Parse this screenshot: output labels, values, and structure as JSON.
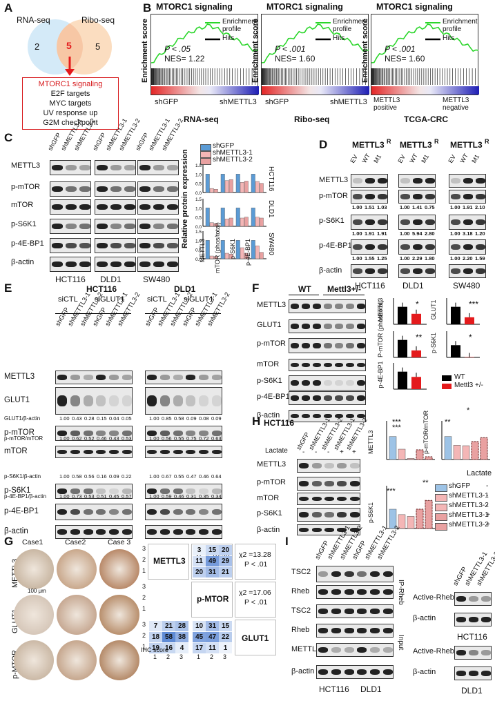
{
  "panels": {
    "A": "A",
    "B": "B",
    "C": "C",
    "D": "D",
    "E": "E",
    "F": "F",
    "G": "G",
    "H": "H",
    "I": "I"
  },
  "venn": {
    "left": "RNA-seq",
    "right": "Ribo-seq",
    "left_only": "2",
    "overlap": "5",
    "right_only": "5",
    "list": [
      "MTORC1 signaling",
      "E2F targets",
      "MYC targets",
      "UV response up",
      "G2M checkpoint"
    ]
  },
  "gsea": [
    {
      "title": "MTORC1 signaling",
      "p": "P < .05",
      "nes": "NES= 1.22",
      "left": "shGFP",
      "right": "shMETTL3",
      "caption": "RNA-seq",
      "legend1": "Enrichment profile",
      "legend2": "Hits"
    },
    {
      "title": "MTORC1 signaling",
      "p": "P < .001",
      "nes": "NES= 1.60",
      "left": "shGFP",
      "right": "shMETTL3",
      "caption": "Ribo-seq",
      "legend1": "Enrichment profile",
      "legend2": "Hits"
    },
    {
      "title": "MTORC1 signaling",
      "p": "P < .001",
      "nes": "NES= 1.60",
      "left": "METTL3 positive",
      "right": "METTL3 negative",
      "caption": "TCGA-CRC",
      "legend1": "Enrichment profile",
      "legend2": "Hits"
    }
  ],
  "gsea_ylabel": "Enrichment score",
  "C": {
    "rows": [
      "METTL3",
      "p-mTOR",
      "mTOR",
      "p-S6K1",
      "p-4E-BP1",
      "β-actin"
    ],
    "lanes": [
      "shGFP",
      "shMETTL3-1",
      "shMETTL3-2"
    ],
    "cells": [
      "HCT116",
      "DLD1",
      "SW480"
    ],
    "legend": [
      "shGFP",
      "shMETTL3-1",
      "shMETTL3-2"
    ],
    "ylabel": "Relative protein expression",
    "xcats": [
      "METTL3",
      "mTOR (phos/total)",
      "p-S6K1",
      "p-4E-BP1"
    ]
  },
  "D": {
    "headers": [
      "METTL3",
      "METTL3",
      "METTL3"
    ],
    "sup": "R",
    "lanes": [
      "EV",
      "WT",
      "M1"
    ],
    "rows": [
      "METTL3",
      "p-mTOR",
      "p-S6K1",
      "p-4E-BP1",
      "β-actin"
    ],
    "cells": [
      "HCT116",
      "DLD1",
      "SW480"
    ],
    "quant": {
      "p-mTOR": [
        [
          "1.00",
          "1.51",
          "1.03"
        ],
        [
          "1.00",
          "1.41",
          "0.75"
        ],
        [
          "1.00",
          "1.91",
          "2.10"
        ]
      ],
      "p-S6K1": [
        [
          "1.00",
          "1.91",
          "1.91"
        ],
        [
          "1.00",
          "5.94",
          "2.80"
        ],
        [
          "1.00",
          "3.18",
          "1.20"
        ]
      ],
      "p-4E-BP1": [
        [
          "1.00",
          "1.55",
          "1.25"
        ],
        [
          "1.00",
          "2.29",
          "1.80"
        ],
        [
          "1.00",
          "2.20",
          "1.59"
        ]
      ]
    }
  },
  "E": {
    "cells": [
      "HCT116",
      "DLD1"
    ],
    "si": [
      "siCTL",
      "siGLUT1"
    ],
    "plus": "+",
    "lanes": [
      "shGFP",
      "shMETTL3-1",
      "shMETTL3-2",
      "shGFP",
      "shMETTL3-1",
      "shMETTL3-2"
    ],
    "rows": [
      "METTL3",
      "GLUT1",
      "p-mTOR",
      "mTOR",
      "p-S6K1",
      "p-4E-BP1",
      "β-actin"
    ],
    "quant": [
      {
        "label": "GLUT1/β-actin",
        "vals": [
          "1.00",
          "0.43",
          "0.28",
          "0.15",
          "0.04",
          "0.05",
          "1.00",
          "0.85",
          "0.58",
          "0.09",
          "0.08",
          "0.09"
        ]
      },
      {
        "label": "p-mTOR/mTOR",
        "vals": [
          "1.00",
          "0.62",
          "0.52",
          "0.46",
          "0.43",
          "0.53",
          "1.00",
          "0.56",
          "0.55",
          "0.75",
          "0.72",
          "0.63"
        ]
      },
      {
        "label": "p-S6K1/β-actin",
        "vals": [
          "1.00",
          "0.58",
          "0.56",
          "0.16",
          "0.09",
          "0.22",
          "1.00",
          "0.67",
          "0.55",
          "0.47",
          "0.46",
          "0.64"
        ]
      },
      {
        "label": "p-4E-BP1/β-actin",
        "vals": [
          "1.00",
          "0.73",
          "0.53",
          "0.51",
          "0.45",
          "0.57",
          "1.00",
          "0.59",
          "0.46",
          "0.31",
          "0.35",
          "0.34"
        ]
      }
    ]
  },
  "F": {
    "groups": [
      "WT",
      "Mettl3+/-"
    ],
    "rows": [
      "METTL3",
      "GLUT1",
      "p-mTOR",
      "mTOR",
      "p-S6K1",
      "p-4E-BP1",
      "β-actin"
    ],
    "bar_labels": [
      "METTL3",
      "GLUT1",
      "P-mTOR (phos/total)",
      "p-S6K1",
      "p-4E-BP1"
    ],
    "legend": [
      "WT",
      "Mettl3 +/-"
    ],
    "stars": [
      "*",
      "***",
      "**",
      "*",
      ""
    ]
  },
  "G": {
    "cases": [
      "Case1",
      "Case2",
      "Case 3"
    ],
    "rows": [
      "METTL3",
      "GLUT1",
      "p-MTOR"
    ],
    "scale": "100 μm",
    "diag": [
      "METTL3",
      "p-MTOR",
      "GLUT1"
    ],
    "stats": [
      [
        "χ2 = 13.93",
        "P < .01"
      ],
      [
        "χ2 =13.28",
        "P < .01"
      ],
      [
        "χ2 =17.06",
        "P < .01"
      ]
    ],
    "m1": [
      [
        "3",
        "15",
        "20"
      ],
      [
        "11",
        "49",
        "29"
      ],
      [
        "20",
        "31",
        "21"
      ]
    ],
    "m2": [
      [
        "7",
        "21",
        "28"
      ],
      [
        "18",
        "58",
        "38"
      ],
      [
        "19",
        "16",
        "4"
      ]
    ],
    "m3": [
      [
        "10",
        "31",
        "15"
      ],
      [
        "45",
        "47",
        "22"
      ],
      [
        "17",
        "11",
        "1"
      ]
    ],
    "axis": [
      "1",
      "2",
      "3"
    ],
    "ihc": "IHC score"
  },
  "H": {
    "cell": "HCT116",
    "lactate": "Lactate",
    "lanes": [
      "shGFP",
      "shMETTL3-1",
      "shMETTL3-2",
      "shMETTL3-1",
      "shMETTL3-2"
    ],
    "lac_signs": [
      "-",
      "-",
      "-",
      "+",
      "+"
    ],
    "rows": [
      "METTL3",
      "p-mTOR",
      "mTOR",
      "p-S6K1",
      "β-actin"
    ],
    "charts": [
      "METTL3",
      "p-mTOR/mTOR",
      "p-S6K1"
    ],
    "legend": [
      [
        "shGFP",
        "-"
      ],
      [
        "shMETTL3-1",
        "-"
      ],
      [
        "shMETTL3-2",
        "-"
      ],
      [
        "shMETTL3-1",
        "+"
      ],
      [
        "shMETTL3-2",
        "+"
      ]
    ],
    "legend_head": "Lactate",
    "chart_data": [
      {
        "type": "bar",
        "categories": [
          "shGFP",
          "shMETTL3-1",
          "shMETTL3-2",
          "shMETTL3-1 +",
          "shMETTL3-2 +"
        ],
        "values": [
          1.0,
          0.45,
          0.05,
          0.42,
          0.12
        ],
        "ylim": [
          0,
          1.5
        ]
      },
      {
        "type": "bar",
        "categories": [
          "shGFP",
          "shMETTL3-1",
          "shMETTL3-2",
          "shMETTL3-1 +",
          "shMETTL3-2 +"
        ],
        "values": [
          1.0,
          0.62,
          0.6,
          0.78,
          0.95
        ],
        "ylim": [
          0,
          1.5
        ]
      },
      {
        "type": "bar",
        "categories": [
          "shGFP",
          "shMETTL3-1",
          "shMETTL3-2",
          "shMETTL3-1 +",
          "shMETTL3-2 +"
        ],
        "values": [
          1.0,
          0.72,
          0.63,
          1.0,
          1.45
        ],
        "ylim": [
          0,
          2
        ]
      }
    ],
    "stars": [
      "***",
      "***",
      "**",
      "*",
      "***",
      "**"
    ]
  },
  "I": {
    "lanes": [
      "shGFP",
      "shMETTL3-1",
      "shMETTL3-2",
      "shGFP",
      "shMETTL3-1",
      "shMETTL3-2"
    ],
    "rows": [
      "TSC2",
      "Rheb",
      "TSC2",
      "Rheb",
      "METTL3",
      "β-actin"
    ],
    "side": [
      "IP-Rheb",
      "Input"
    ],
    "cells": [
      "HCT116",
      "DLD1"
    ],
    "right_lanes": [
      "shGFP",
      "shMETTL3-1",
      "shMETTL3-2"
    ],
    "right_rows": [
      "Active-Rheb",
      "β-actin"
    ]
  },
  "C_chart": {
    "chart_data": [
      {
        "type": "bar",
        "cell": "HCT116",
        "categories": [
          "METTL3",
          "mTOR (phos/total)",
          "p-S6K1",
          "p-4E-BP1"
        ],
        "series": [
          {
            "name": "shGFP",
            "values": [
              1,
              1,
              1,
              1
            ]
          },
          {
            "name": "shMETTL3-1",
            "values": [
              0.22,
              0.65,
              0.55,
              0.6
            ]
          },
          {
            "name": "shMETTL3-2",
            "values": [
              0.18,
              0.7,
              0.62,
              0.5
            ]
          }
        ],
        "ylim": [
          0,
          1.5
        ]
      },
      {
        "type": "bar",
        "cell": "DLD1",
        "categories": [
          "METTL3",
          "mTOR (phos/total)",
          "p-S6K1",
          "p-4E-BP1"
        ],
        "series": [
          {
            "name": "shGFP",
            "values": [
              1,
              1,
              1,
              1
            ]
          },
          {
            "name": "shMETTL3-1",
            "values": [
              0.2,
              0.4,
              0.45,
              0.5
            ]
          },
          {
            "name": "shMETTL3-2",
            "values": [
              0.15,
              0.45,
              0.5,
              0.45
            ]
          }
        ],
        "ylim": [
          0,
          1.5
        ]
      },
      {
        "type": "bar",
        "cell": "SW480",
        "categories": [
          "METTL3",
          "mTOR (phos/total)",
          "p-S6K1",
          "p-4E-BP1"
        ],
        "series": [
          {
            "name": "shGFP",
            "values": [
              1,
              1,
              1,
              1
            ]
          },
          {
            "name": "shMETTL3-1",
            "values": [
              0.15,
              0.3,
              0.6,
              0.7
            ]
          },
          {
            "name": "shMETTL3-2",
            "values": [
              0.12,
              0.25,
              0.3,
              0.35
            ]
          }
        ],
        "ylim": [
          0,
          1.5
        ]
      }
    ],
    "tick_labels": [
      "0.0",
      "0.5",
      "1.0",
      "1.5"
    ]
  },
  "F_chart": {
    "chart_data": [
      {
        "type": "bar",
        "name": "METTL3",
        "series": [
          {
            "name": "WT",
            "values": [
              1.0
            ]
          },
          {
            "name": "Mettl3 +/-",
            "values": [
              0.6
            ]
          }
        ],
        "ylim": [
          0,
          1.5
        ]
      },
      {
        "type": "bar",
        "name": "GLUT1",
        "series": [
          {
            "name": "WT",
            "values": [
              1.0
            ]
          },
          {
            "name": "Mettl3 +/-",
            "values": [
              0.4
            ]
          }
        ],
        "ylim": [
          0,
          1.5
        ]
      },
      {
        "type": "bar",
        "name": "P-mTOR (phos/total)",
        "series": [
          {
            "name": "WT",
            "values": [
              1.0
            ]
          },
          {
            "name": "Mettl3 +/-",
            "values": [
              0.4
            ]
          }
        ],
        "ylim": [
          0,
          1.5
        ]
      },
      {
        "type": "bar",
        "name": "p-S6K1",
        "series": [
          {
            "name": "WT",
            "values": [
              0.7
            ]
          },
          {
            "name": "Mettl3 +/-",
            "values": [
              0.02
            ]
          }
        ],
        "ylim": [
          0,
          1.5
        ]
      },
      {
        "type": "bar",
        "name": "p-4E-BP1",
        "series": [
          {
            "name": "WT",
            "values": [
              1.0
            ]
          },
          {
            "name": "Mettl3 +/-",
            "values": [
              0.7
            ]
          }
        ],
        "ylim": [
          0,
          1.5
        ]
      }
    ]
  },
  "colors": {
    "blue": "#5b9bd5",
    "pink": "#f4b6b6",
    "red": "#e41a1c",
    "green": "#2bd62b",
    "venn_blue": "#cfe8f7",
    "venn_orange": "#fbd9b9",
    "list_red": "#d7191c"
  }
}
